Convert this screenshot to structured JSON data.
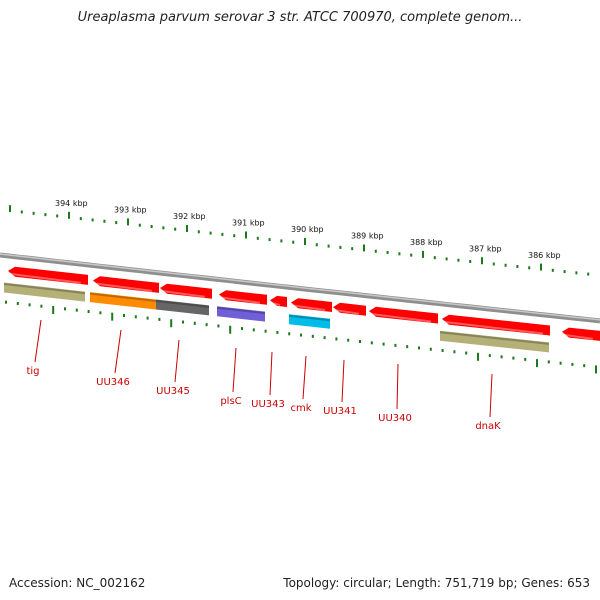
{
  "title": "Ureaplasma parvum serovar 3 str. ATCC 700970, complete genom...",
  "footer": {
    "accession": "Accession: NC_002162",
    "summary": "Topology: circular; Length: 751,719 bp; Genes: 653"
  },
  "colors": {
    "backbone": "#8e8e8e",
    "tick": "#1a7a1a",
    "cds": "#ff0000",
    "label": "#cc0000",
    "olive": "#b5b078",
    "orange": "#ff8c00",
    "gray": "#666666",
    "purple": "#7060d8",
    "cyan": "#00bce8"
  },
  "ruler": {
    "labels": [
      "394 kbp",
      "393 kbp",
      "392 kbp",
      "391 kbp",
      "390 kbp",
      "389 kbp",
      "388 kbp",
      "387 kbp",
      "386 kbp"
    ]
  },
  "genes": [
    {
      "name": "tig"
    },
    {
      "name": "UU346"
    },
    {
      "name": "UU345"
    },
    {
      "name": "plsC"
    },
    {
      "name": "UU343"
    },
    {
      "name": "cmk"
    },
    {
      "name": "UU341"
    },
    {
      "name": "UU340"
    },
    {
      "name": "dnaK"
    }
  ]
}
